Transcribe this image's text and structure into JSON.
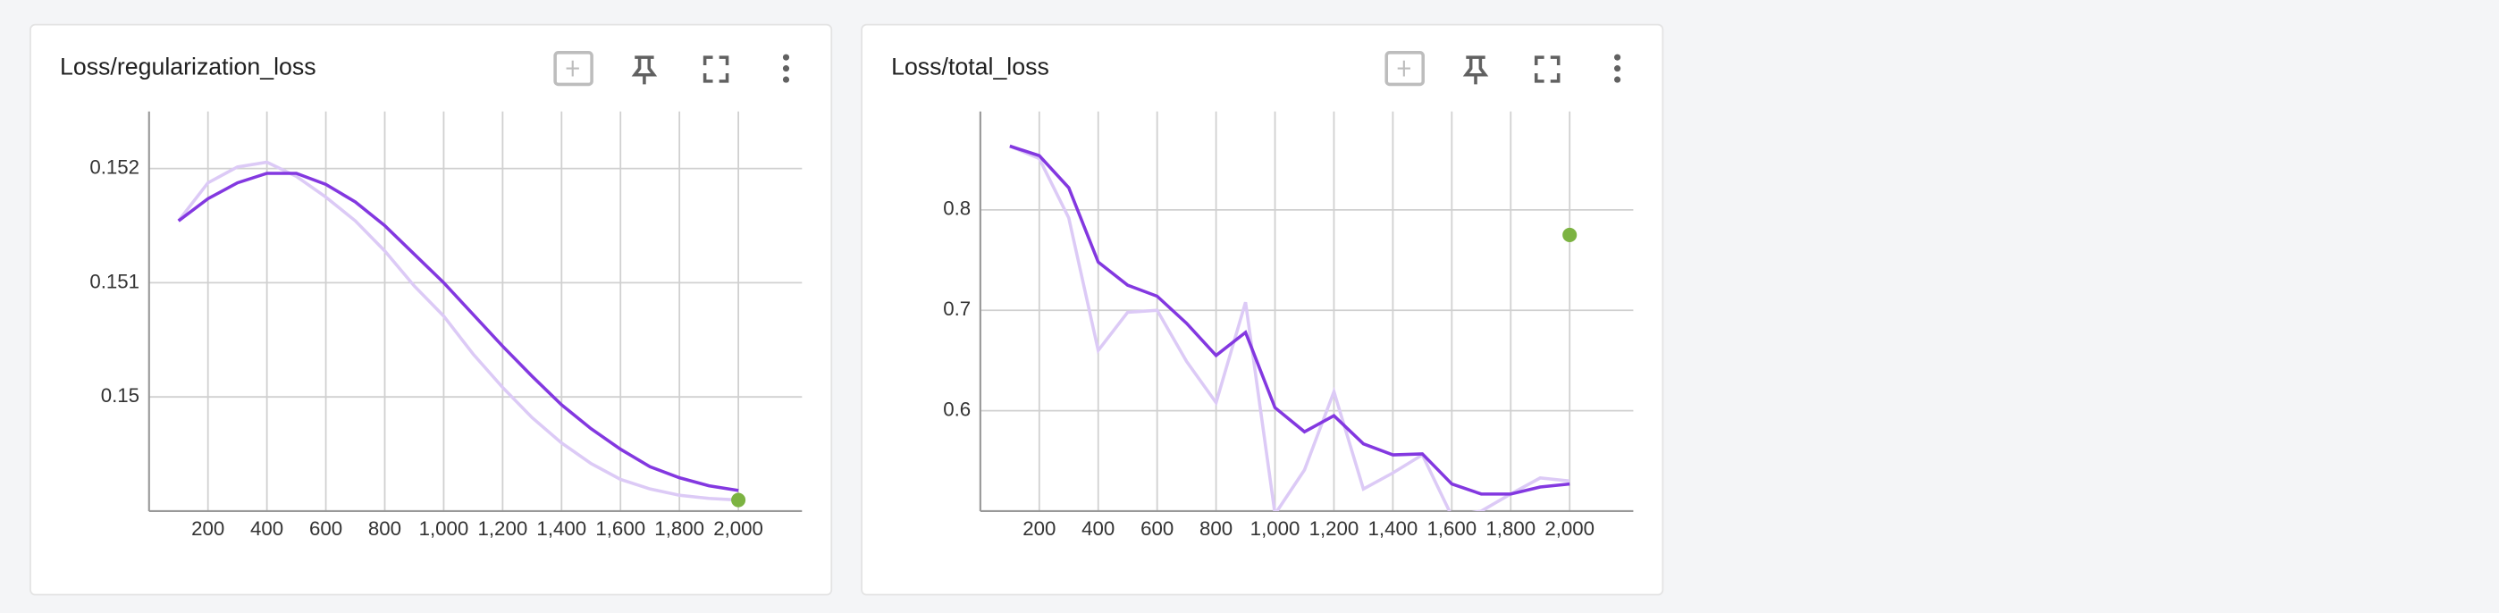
{
  "chart_data": [
    {
      "type": "line",
      "title": "Loss/regularization_loss",
      "x": [
        100,
        200,
        300,
        400,
        500,
        600,
        700,
        800,
        900,
        1000,
        1100,
        1200,
        1300,
        1400,
        1500,
        1600,
        1700,
        1800,
        1900,
        2000
      ],
      "series": [
        {
          "color": "#dccaf6",
          "values": [
            0.151542,
            0.151875,
            0.152014,
            0.152056,
            0.151931,
            0.15175,
            0.151542,
            0.151278,
            0.150972,
            0.150708,
            0.150375,
            0.150083,
            0.149819,
            0.149597,
            0.149417,
            0.149278,
            0.149194,
            0.149139,
            0.149111,
            0.149097
          ]
        },
        {
          "color": "#8338e0",
          "values": [
            0.151542,
            0.151736,
            0.151875,
            0.151958,
            0.151958,
            0.151861,
            0.151708,
            0.1515,
            0.15125,
            0.151,
            0.150722,
            0.150444,
            0.150181,
            0.149931,
            0.149722,
            0.149542,
            0.149389,
            0.149292,
            0.149222,
            0.149181
          ]
        },
        {
          "color": "#7cb342",
          "values": [
            null,
            null,
            null,
            null,
            null,
            null,
            null,
            null,
            null,
            null,
            null,
            null,
            null,
            null,
            null,
            null,
            null,
            null,
            null,
            0.149097
          ]
        }
      ],
      "xlim": [
        0,
        2216
      ],
      "xticks": [
        200,
        400,
        600,
        800,
        {
          "value": 1000,
          "label": "1,000"
        },
        {
          "value": 1200,
          "label": "1,200"
        },
        {
          "value": 1400,
          "label": "1,400"
        },
        {
          "value": 1600,
          "label": "1,600"
        },
        {
          "value": 1800,
          "label": "1,800"
        },
        {
          "value": 2000,
          "label": "2,000"
        }
      ],
      "ylim": [
        0.149,
        0.1525
      ],
      "yticks": [
        0.15,
        0.151,
        0.152
      ],
      "grid": true
    },
    {
      "type": "line",
      "title": "Loss/total_loss",
      "x": [
        100,
        200,
        300,
        400,
        500,
        600,
        700,
        800,
        900,
        1000,
        1100,
        1200,
        1300,
        1400,
        1500,
        1600,
        1700,
        1800,
        1900,
        2000
      ],
      "series": [
        {
          "color": "#dccaf6",
          "values": [
            0.8635,
            0.851,
            0.792,
            0.66,
            0.698,
            0.7,
            0.649,
            0.608,
            0.708,
            0.497,
            0.541,
            0.619,
            0.522,
            0.538,
            0.556,
            0.495,
            0.5,
            0.517,
            0.533,
            0.53
          ]
        },
        {
          "color": "#8338e0",
          "values": [
            0.8635,
            0.854,
            0.822,
            0.748,
            0.725,
            0.714,
            0.687,
            0.655,
            0.678,
            0.603,
            0.579,
            0.595,
            0.567,
            0.556,
            0.557,
            0.527,
            0.517,
            0.517,
            0.524,
            0.527
          ]
        },
        {
          "color": "#7cb342",
          "values": [
            null,
            null,
            null,
            null,
            null,
            null,
            null,
            null,
            null,
            null,
            null,
            null,
            null,
            null,
            null,
            null,
            null,
            null,
            null,
            0.775
          ]
        }
      ],
      "xlim": [
        0,
        2216
      ],
      "xticks": [
        200,
        400,
        600,
        800,
        {
          "value": 1000,
          "label": "1,000"
        },
        {
          "value": 1200,
          "label": "1,200"
        },
        {
          "value": 1400,
          "label": "1,400"
        },
        {
          "value": 1600,
          "label": "1,600"
        },
        {
          "value": 1800,
          "label": "1,800"
        },
        {
          "value": 2000,
          "label": "2,000"
        }
      ],
      "ylim": [
        0.5,
        0.898
      ],
      "yticks": [
        0.6,
        0.7,
        0.8
      ],
      "grid": true
    }
  ]
}
